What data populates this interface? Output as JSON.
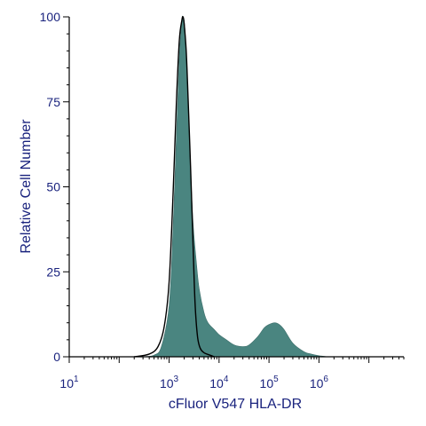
{
  "chart_data": {
    "type": "area",
    "xlabel": "cFluor V547 HLA-DR",
    "ylabel": "Relative Cell Number",
    "xscale": "log",
    "xlim": [
      10,
      50000000
    ],
    "ylim": [
      0,
      100
    ],
    "x_ticks": [
      {
        "base": "10",
        "exp": "1",
        "value": 10
      },
      {
        "base": "10",
        "exp": "3",
        "value": 1000
      },
      {
        "base": "10",
        "exp": "4",
        "value": 10000
      },
      {
        "base": "10",
        "exp": "5",
        "value": 100000
      },
      {
        "base": "10",
        "exp": "6",
        "value": 1000000
      }
    ],
    "y_ticks": [
      "0",
      "25",
      "50",
      "75",
      "100"
    ],
    "grid": false,
    "colors": {
      "filled_series": "#4a8580",
      "outline_series": "#000000",
      "axis": "#000000",
      "text": "#1a237e"
    },
    "series": [
      {
        "style": "filled",
        "x": [
          300,
          500,
          700,
          1000,
          1200,
          1400,
          1600,
          1800,
          1900,
          2000,
          2100,
          2300,
          2600,
          3000,
          3500,
          4000,
          5000,
          6000,
          8000,
          10000,
          14000,
          20000,
          30000,
          40000,
          60000,
          80000,
          100000,
          130000,
          160000,
          200000,
          300000,
          500000,
          700000,
          1000000,
          1500000
        ],
        "y": [
          0,
          0.5,
          3,
          15,
          38,
          65,
          88,
          99,
          100,
          99,
          95,
          82,
          60,
          40,
          28,
          20,
          13,
          10,
          8,
          6.5,
          5,
          3.5,
          3,
          3.5,
          6,
          8.5,
          9.5,
          10,
          9.5,
          8,
          4,
          1.5,
          0.8,
          0.3,
          0
        ]
      },
      {
        "style": "outline",
        "x": [
          200,
          400,
          600,
          800,
          1000,
          1200,
          1400,
          1600,
          1800,
          1900,
          2000,
          2200,
          2400,
          2700,
          3000,
          3300,
          3700,
          4200,
          5000,
          6500,
          8000
        ],
        "y": [
          0,
          0.8,
          3,
          9,
          22,
          48,
          75,
          93,
          99,
          100,
          98,
          90,
          76,
          55,
          34,
          16,
          6,
          2.5,
          1.2,
          0.5,
          0
        ]
      }
    ]
  }
}
